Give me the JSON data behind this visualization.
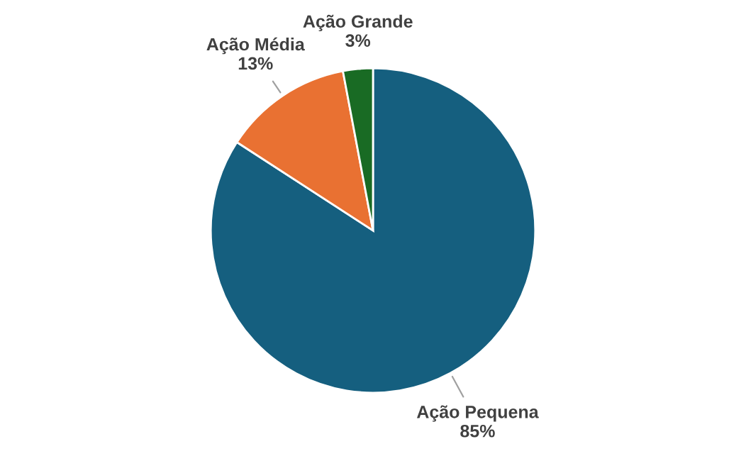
{
  "chart_data": {
    "type": "pie",
    "categories": [
      "Ação Pequena",
      "Ação Média",
      "Ação Grande"
    ],
    "values": [
      85,
      13,
      3
    ],
    "value_labels": [
      "85%",
      "13%",
      "3%"
    ],
    "colors": [
      "#155f7f",
      "#e97132",
      "#196b24"
    ]
  }
}
